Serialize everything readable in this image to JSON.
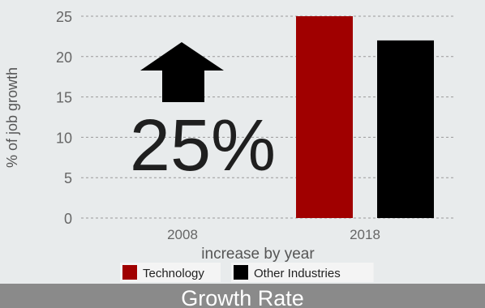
{
  "footer_title": "Growth Rate",
  "callout": {
    "text": "25%",
    "arrow_icon": "up-arrow-icon"
  },
  "chart_data": {
    "type": "bar",
    "categories": [
      "2008",
      "2018"
    ],
    "series": [
      {
        "name": "Technology",
        "color": "#a00000",
        "values": [
          null,
          25
        ]
      },
      {
        "name": "Other Industries",
        "color": "#000000",
        "values": [
          null,
          22
        ]
      }
    ],
    "xlabel": "increase by year",
    "ylabel": "% of job growth",
    "ylim": [
      0,
      25
    ],
    "yticks": [
      0,
      5,
      10,
      15,
      20,
      25
    ],
    "grid": true,
    "legend_position": "bottom"
  }
}
